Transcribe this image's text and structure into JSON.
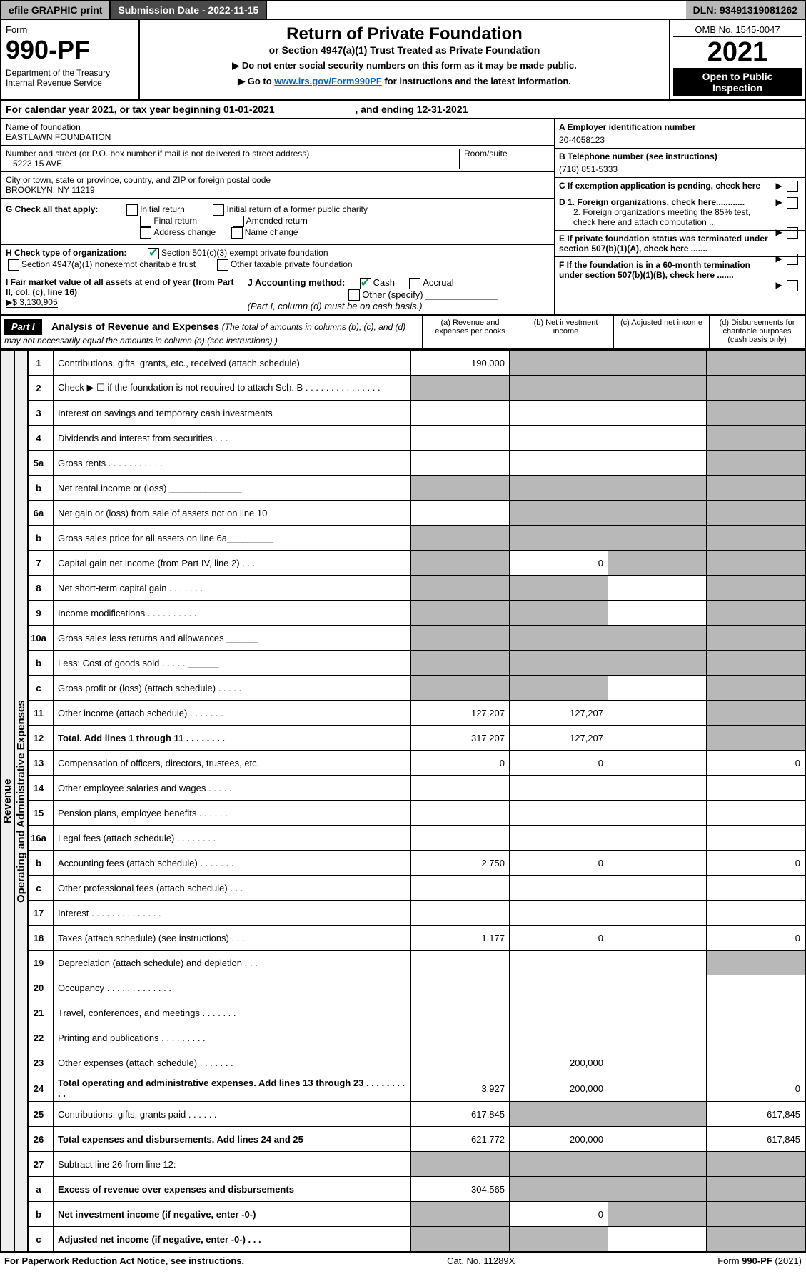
{
  "topbar": {
    "print": "efile GRAPHIC print",
    "subdate": "Submission Date - 2022-11-15",
    "dln": "DLN: 93491319081262"
  },
  "header": {
    "form_label": "Form",
    "form_num": "990-PF",
    "dept": "Department of the Treasury\nInternal Revenue Service",
    "title": "Return of Private Foundation",
    "sub": "or Section 4947(a)(1) Trust Treated as Private Foundation",
    "note1": "▶ Do not enter social security numbers on this form as it may be made public.",
    "note2_pre": "▶ Go to ",
    "note2_link": "www.irs.gov/Form990PF",
    "note2_post": " for instructions and the latest information.",
    "omb": "OMB No. 1545-0047",
    "year": "2021",
    "open": "Open to Public Inspection"
  },
  "calendar": "For calendar year 2021, or tax year beginning 01-01-2021                             , and ending 12-31-2021",
  "info": {
    "name_label": "Name of foundation",
    "name": "EASTLAWN FOUNDATION",
    "addr_label": "Number and street (or P.O. box number if mail is not delivered to street address)",
    "addr": "5223 15 AVE",
    "room": "Room/suite",
    "city_label": "City or town, state or province, country, and ZIP or foreign postal code",
    "city": "BROOKLYN, NY  11219",
    "A_label": "A Employer identification number",
    "A": "20-4058123",
    "B_label": "B Telephone number (see instructions)",
    "B": "(718) 851-5333",
    "C": "C If exemption application is pending, check here",
    "D1": "D 1. Foreign organizations, check here............",
    "D2": "2. Foreign organizations meeting the 85% test, check here and attach computation ...",
    "E": "E   If private foundation status was terminated under section 507(b)(1)(A), check here .......",
    "F": "F   If the foundation is in a 60-month termination under section 507(b)(1)(B), check here .......",
    "G": "G Check all that apply:",
    "G_opts": [
      "Initial return",
      "Final return",
      "Address change",
      "Initial return of a former public charity",
      "Amended return",
      "Name change"
    ],
    "H": "H Check type of organization:",
    "H1": "Section 501(c)(3) exempt private foundation",
    "H2": "Section 4947(a)(1) nonexempt charitable trust",
    "H3": "Other taxable private foundation",
    "I": "I Fair market value of all assets at end of year (from Part II, col. (c), line 16)",
    "I_val": "▶$  3,130,905",
    "J": "J Accounting method:",
    "J1": "Cash",
    "J2": "Accrual",
    "J3": "Other (specify)",
    "J_note": "(Part I, column (d) must be on cash basis.)"
  },
  "part1": {
    "label": "Part I",
    "title": "Analysis of Revenue and Expenses",
    "subtitle": "(The total of amounts in columns (b), (c), and (d) may not necessarily equal the amounts in column (a) (see instructions).)",
    "cols": [
      "(a)   Revenue and expenses per books",
      "(b)   Net investment income",
      "(c)   Adjusted net income",
      "(d)  Disbursements for charitable purposes (cash basis only)"
    ]
  },
  "rows": [
    {
      "sec": "rev",
      "n": "1",
      "t": "Contributions, gifts, grants, etc., received (attach schedule)",
      "a": "190,000",
      "b": "s",
      "c": "s",
      "d": "s"
    },
    {
      "sec": "rev",
      "n": "2",
      "t": "Check ▶ ☐  if the foundation is not required to attach Sch. B       .    .    .    .    .    .    .    .    .    .    .    .    .    .    .",
      "a": "s",
      "b": "s",
      "c": "s",
      "d": "s"
    },
    {
      "sec": "rev",
      "n": "3",
      "t": "Interest on savings and temporary cash investments",
      "a": "",
      "b": "",
      "c": "",
      "d": "s"
    },
    {
      "sec": "rev",
      "n": "4",
      "t": "Dividends and interest from securities     .    .    .",
      "a": "",
      "b": "",
      "c": "",
      "d": "s"
    },
    {
      "sec": "rev",
      "n": "5a",
      "t": "Gross rents       .    .    .    .    .    .    .    .    .    .    .",
      "a": "",
      "b": "",
      "c": "",
      "d": "s"
    },
    {
      "sec": "rev",
      "n": "b",
      "t": "Net rental income or (loss)       ______________",
      "a": "s",
      "b": "s",
      "c": "s",
      "d": "s"
    },
    {
      "sec": "rev",
      "n": "6a",
      "t": "Net gain or (loss) from sale of assets not on line 10",
      "a": "",
      "b": "s",
      "c": "s",
      "d": "s"
    },
    {
      "sec": "rev",
      "n": "b",
      "t": "Gross sales price for all assets on line 6a_________",
      "a": "s",
      "b": "s",
      "c": "s",
      "d": "s"
    },
    {
      "sec": "rev",
      "n": "7",
      "t": "Capital gain net income (from Part IV, line 2)    .    .    .",
      "a": "s",
      "b": "0",
      "c": "s",
      "d": "s"
    },
    {
      "sec": "rev",
      "n": "8",
      "t": "Net short-term capital gain   .    .    .    .    .    .    .",
      "a": "s",
      "b": "s",
      "c": "",
      "d": "s"
    },
    {
      "sec": "rev",
      "n": "9",
      "t": "Income modifications .    .    .    .    .    .    .    .    .    .",
      "a": "s",
      "b": "s",
      "c": "",
      "d": "s"
    },
    {
      "sec": "rev",
      "n": "10a",
      "t": "Gross sales less returns and allowances   ______",
      "a": "s",
      "b": "s",
      "c": "s",
      "d": "s"
    },
    {
      "sec": "rev",
      "n": "b",
      "t": "Less: Cost of goods sold      .    .    .    .    .     ______",
      "a": "s",
      "b": "s",
      "c": "s",
      "d": "s"
    },
    {
      "sec": "rev",
      "n": "c",
      "t": "Gross profit or (loss) (attach schedule)       .    .    .    .    .",
      "a": "s",
      "b": "s",
      "c": "",
      "d": "s"
    },
    {
      "sec": "rev",
      "n": "11",
      "t": "Other income (attach schedule)    .    .    .    .    .    .    .",
      "a": "127,207",
      "b": "127,207",
      "c": "",
      "d": "s"
    },
    {
      "sec": "rev",
      "n": "12",
      "t": "Total. Add lines 1 through 11    .    .    .    .    .    .    .    .",
      "a": "317,207",
      "b": "127,207",
      "c": "",
      "d": "s",
      "bold": true
    },
    {
      "sec": "op",
      "n": "13",
      "t": "Compensation of officers, directors, trustees, etc.",
      "a": "0",
      "b": "0",
      "c": "",
      "d": "0"
    },
    {
      "sec": "op",
      "n": "14",
      "t": "Other employee salaries and wages    .    .    .    .    .",
      "a": "",
      "b": "",
      "c": "",
      "d": ""
    },
    {
      "sec": "op",
      "n": "15",
      "t": "Pension plans, employee benefits  .    .    .    .    .    .",
      "a": "",
      "b": "",
      "c": "",
      "d": ""
    },
    {
      "sec": "op",
      "n": "16a",
      "t": "Legal fees (attach schedule) .    .    .    .    .    .    .    .",
      "a": "",
      "b": "",
      "c": "",
      "d": ""
    },
    {
      "sec": "op",
      "n": "b",
      "t": "Accounting fees (attach schedule) .    .    .    .    .    .    .",
      "a": "2,750",
      "b": "0",
      "c": "",
      "d": "0"
    },
    {
      "sec": "op",
      "n": "c",
      "t": "Other professional fees (attach schedule)     .    .    .",
      "a": "",
      "b": "",
      "c": "",
      "d": ""
    },
    {
      "sec": "op",
      "n": "17",
      "t": "Interest  .    .    .    .    .    .    .    .    .    .    .    .    .    .",
      "a": "",
      "b": "",
      "c": "",
      "d": ""
    },
    {
      "sec": "op",
      "n": "18",
      "t": "Taxes (attach schedule) (see instructions)      .    .    .",
      "a": "1,177",
      "b": "0",
      "c": "",
      "d": "0"
    },
    {
      "sec": "op",
      "n": "19",
      "t": "Depreciation (attach schedule) and depletion    .    .    .",
      "a": "",
      "b": "",
      "c": "",
      "d": "s"
    },
    {
      "sec": "op",
      "n": "20",
      "t": "Occupancy .    .    .    .    .    .    .    .    .    .    .    .    .",
      "a": "",
      "b": "",
      "c": "",
      "d": ""
    },
    {
      "sec": "op",
      "n": "21",
      "t": "Travel, conferences, and meetings .    .    .    .    .    .    .",
      "a": "",
      "b": "",
      "c": "",
      "d": ""
    },
    {
      "sec": "op",
      "n": "22",
      "t": "Printing and publications .    .    .    .    .    .    .    .    .",
      "a": "",
      "b": "",
      "c": "",
      "d": ""
    },
    {
      "sec": "op",
      "n": "23",
      "t": "Other expenses (attach schedule) .    .    .    .    .    .    .",
      "a": "",
      "b": "200,000",
      "c": "",
      "d": ""
    },
    {
      "sec": "op",
      "n": "24",
      "t": "Total operating and administrative expenses. Add lines 13 through 23   .    .    .    .    .    .    .    .    .    .",
      "a": "3,927",
      "b": "200,000",
      "c": "",
      "d": "0",
      "bold": true
    },
    {
      "sec": "op",
      "n": "25",
      "t": "Contributions, gifts, grants paid      .    .    .    .    .    .",
      "a": "617,845",
      "b": "s",
      "c": "s",
      "d": "617,845"
    },
    {
      "sec": "op",
      "n": "26",
      "t": "Total expenses and disbursements. Add lines 24 and 25",
      "a": "621,772",
      "b": "200,000",
      "c": "",
      "d": "617,845",
      "bold": true
    },
    {
      "sec": "net",
      "n": "27",
      "t": "Subtract line 26 from line 12:",
      "a": "s",
      "b": "s",
      "c": "s",
      "d": "s"
    },
    {
      "sec": "net",
      "n": "a",
      "t": "Excess of revenue over expenses and disbursements",
      "a": "-304,565",
      "b": "s",
      "c": "s",
      "d": "s",
      "bold": true
    },
    {
      "sec": "net",
      "n": "b",
      "t": "Net investment income (if negative, enter -0-)",
      "a": "s",
      "b": "0",
      "c": "s",
      "d": "s",
      "bold": true
    },
    {
      "sec": "net",
      "n": "c",
      "t": "Adjusted net income (if negative, enter -0-)    .    .    .",
      "a": "s",
      "b": "s",
      "c": "",
      "d": "s",
      "bold": true
    }
  ],
  "sidelabels": {
    "rev": "Revenue",
    "op": "Operating and Administrative Expenses"
  },
  "footer": {
    "left": "For Paperwork Reduction Act Notice, see instructions.",
    "cat": "Cat. No. 11289X",
    "form": "Form 990-PF (2021)"
  }
}
